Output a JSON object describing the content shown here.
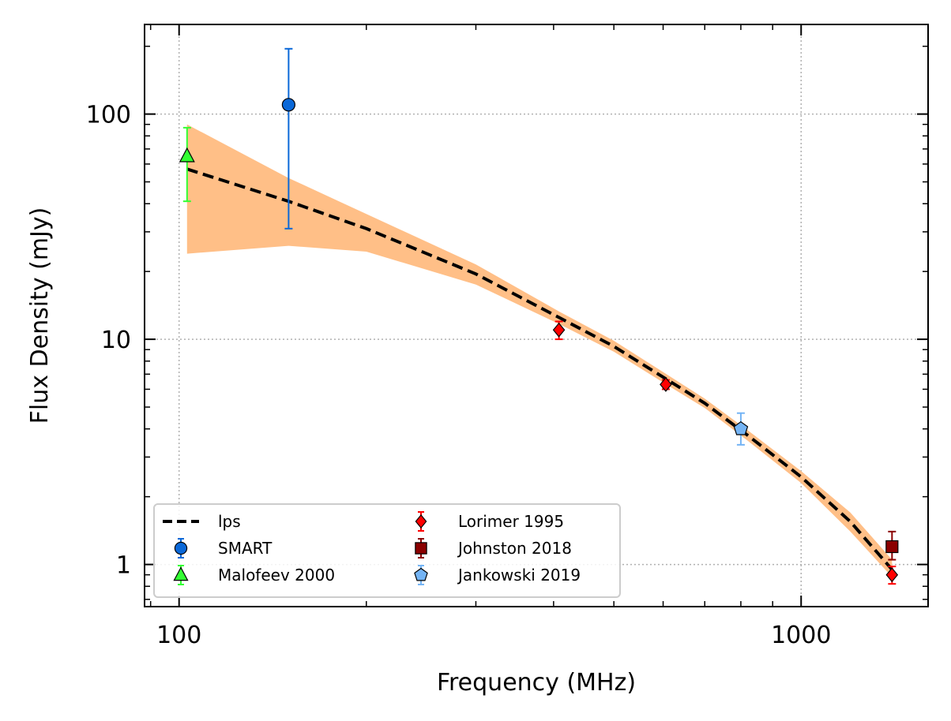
{
  "chart_data": {
    "type": "scatter",
    "title": "",
    "xlabel": "Frequency (MHz)",
    "ylabel": "Flux Density (mJy)",
    "xscale": "log",
    "yscale": "log",
    "xlim": [
      88,
      1600
    ],
    "ylim": [
      0.65,
      250
    ],
    "x_ticks": [
      {
        "value": 100,
        "label": "100"
      },
      {
        "value": 1000,
        "label": "1000"
      }
    ],
    "y_ticks": [
      {
        "value": 1,
        "label": "1"
      },
      {
        "value": 10,
        "label": "10"
      },
      {
        "value": 100,
        "label": "100"
      }
    ],
    "grid": true,
    "legend_position": "lower-left",
    "model": {
      "name": "lps",
      "color": "#000000",
      "band_color": "#ffbf87",
      "x": [
        103,
        150,
        200,
        300,
        408,
        500,
        610,
        700,
        820,
        1000,
        1200,
        1400
      ],
      "y": [
        57,
        41,
        31,
        19.5,
        12.5,
        9.3,
        6.6,
        5.2,
        3.75,
        2.45,
        1.55,
        0.95
      ],
      "upper": [
        90,
        52,
        36,
        21.5,
        13.3,
        9.85,
        6.95,
        5.45,
        3.95,
        2.6,
        1.7,
        1.05
      ],
      "lower": [
        24,
        26,
        24.5,
        17.5,
        11.7,
        8.8,
        6.25,
        4.95,
        3.55,
        2.3,
        1.4,
        0.88
      ]
    },
    "series": [
      {
        "name": "SMART",
        "marker": "circle",
        "color": "#0a68d8",
        "points": [
          {
            "x": 150,
            "y": 110,
            "ylo": 31,
            "yhi": 195
          }
        ]
      },
      {
        "name": "Malofeev 2000",
        "marker": "triangle",
        "color": "#33ff33",
        "points": [
          {
            "x": 103,
            "y": 65,
            "ylo": 41,
            "yhi": 87
          }
        ]
      },
      {
        "name": "Lorimer 1995",
        "marker": "diamond",
        "color": "#ff0000",
        "points": [
          {
            "x": 408,
            "y": 11,
            "ylo": 10,
            "yhi": 12
          },
          {
            "x": 606,
            "y": 6.3,
            "ylo": 6.0,
            "yhi": 6.6
          },
          {
            "x": 1400,
            "y": 0.9,
            "ylo": 0.82,
            "yhi": 0.98
          }
        ]
      },
      {
        "name": "Johnston 2018",
        "marker": "square",
        "color": "#8b0000",
        "points": [
          {
            "x": 1400,
            "y": 1.2,
            "ylo": 1.05,
            "yhi": 1.4
          }
        ]
      },
      {
        "name": "Jankowski 2019",
        "marker": "pentagon",
        "color": "#74b4f5",
        "points": [
          {
            "x": 800,
            "y": 4.0,
            "ylo": 3.4,
            "yhi": 4.7
          }
        ]
      }
    ]
  }
}
